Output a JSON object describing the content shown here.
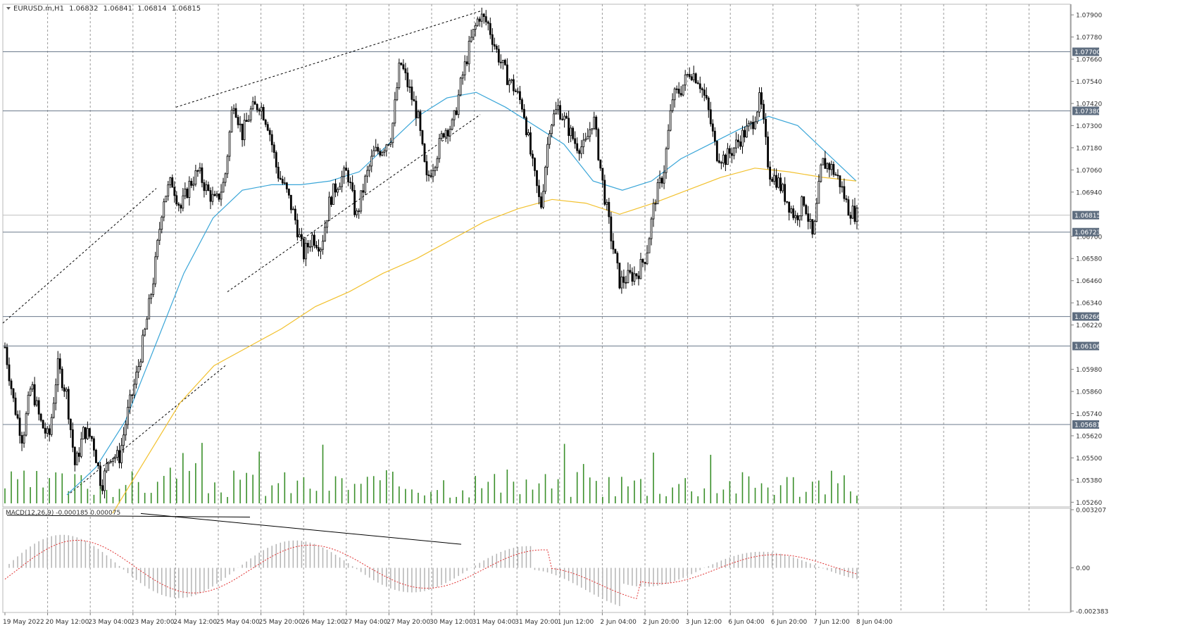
{
  "chart_data": {
    "type": "candlestick",
    "header": {
      "symbol": "EURUSD.m,H1",
      "open": "1.06832",
      "high": "1.06841",
      "low": "1.06814",
      "close": "1.06815"
    },
    "price_axis": {
      "ticks": [
        "1.07900",
        "1.07780",
        "1.07660",
        "1.07540",
        "1.07420",
        "1.07300",
        "1.07180",
        "1.07060",
        "1.06940",
        "1.06700",
        "1.06580",
        "1.06460",
        "1.06340",
        "1.06220",
        "1.05980",
        "1.05860",
        "1.05740",
        "1.05620",
        "1.05500",
        "1.05380",
        "1.05260"
      ],
      "range": [
        1.0525,
        1.0795
      ]
    },
    "levels": [
      {
        "label": "1.07700",
        "value": 1.077,
        "color": "#6b7a8c"
      },
      {
        "label": "1.07380",
        "value": 1.0738,
        "color": "#6b7a8c"
      },
      {
        "label": "1.06723",
        "value": 1.06723,
        "color": "#6b7a8c"
      },
      {
        "label": "1.06266",
        "value": 1.06266,
        "color": "#6b7a8c"
      },
      {
        "label": "1.06106",
        "value": 1.06106,
        "color": "#6b7a8c"
      },
      {
        "label": "1.05681",
        "value": 1.05681,
        "color": "#6b7a8c"
      }
    ],
    "current_price": {
      "label": "1.06815",
      "value": 1.06815
    },
    "time_axis": [
      "19 May 2022",
      "20 May 12:00",
      "23 May 04:00",
      "23 May 20:00",
      "24 May 12:00",
      "25 May 04:00",
      "25 May 20:00",
      "26 May 12:00",
      "27 May 04:00",
      "27 May 20:00",
      "30 May 12:00",
      "31 May 04:00",
      "31 May 20:00",
      "1 Jun 12:00",
      "2 Jun 04:00",
      "2 Jun 20:00",
      "3 Jun 12:00",
      "6 Jun 04:00",
      "6 Jun 20:00",
      "7 Jun 12:00",
      "8 Jun 04:00"
    ],
    "price_path": [
      1.061,
      1.058,
      1.056,
      1.059,
      1.057,
      1.056,
      1.06,
      1.0585,
      1.0545,
      1.0565,
      1.056,
      1.0535,
      1.0552,
      1.055,
      1.0575,
      1.0595,
      1.062,
      1.065,
      1.069,
      1.07,
      1.0685,
      1.0698,
      1.0705,
      1.0695,
      1.0688,
      1.07,
      1.0745,
      1.0725,
      1.0738,
      1.0742,
      1.073,
      1.0705,
      1.0695,
      1.068,
      1.066,
      1.067,
      1.0665,
      1.069,
      1.07,
      1.0705,
      1.068,
      1.07,
      1.0715,
      1.0718,
      1.0725,
      1.0765,
      1.075,
      1.0735,
      1.07,
      1.0712,
      1.0728,
      1.073,
      1.0755,
      1.0775,
      1.079,
      1.0785,
      1.077,
      1.0758,
      1.075,
      1.074,
      1.071,
      1.0685,
      1.073,
      1.074,
      1.073,
      1.072,
      1.0718,
      1.0735,
      1.07,
      1.067,
      1.0645,
      1.0648,
      1.065,
      1.066,
      1.069,
      1.0705,
      1.0745,
      1.075,
      1.076,
      1.0755,
      1.074,
      1.0715,
      1.0712,
      1.0718,
      1.0725,
      1.073,
      1.0745,
      1.0705,
      1.07,
      1.069,
      1.068,
      1.069,
      1.0668,
      1.071,
      1.0708,
      1.07,
      1.0685,
      1.06815
    ],
    "series": [
      {
        "name": "",
        "color": "#3aa6d8",
        "values": [
          1.053,
          1.0545,
          1.057,
          1.061,
          1.065,
          1.068,
          1.0695,
          1.0698,
          1.0698,
          1.07,
          1.0705,
          1.072,
          1.0735,
          1.0745,
          1.0748,
          1.074,
          1.073,
          1.072,
          1.07,
          1.0695,
          1.07,
          1.0712,
          1.072,
          1.0728,
          1.0735,
          1.073,
          1.0715,
          1.07
        ]
      },
      {
        "name": "",
        "color": "#f2c12e",
        "values": [
          1.052,
          1.055,
          1.058,
          1.06,
          1.061,
          1.062,
          1.0632,
          1.064,
          1.065,
          1.0658,
          1.0668,
          1.0678,
          1.0685,
          1.069,
          1.0688,
          1.0682,
          1.0688,
          1.0695,
          1.0702,
          1.0707,
          1.0705,
          1.0702,
          1.07
        ]
      }
    ],
    "macd": {
      "label": "MACD(12,26,9) -0.000185 0.000075",
      "ticks": [
        "0.003207",
        "0.00",
        "-0.002383"
      ],
      "range": [
        -0.002383,
        0.003207
      ],
      "signal_color": "#e03030",
      "hist_color": "#b4b4b4"
    },
    "volume_color": "#3a8f2a"
  }
}
